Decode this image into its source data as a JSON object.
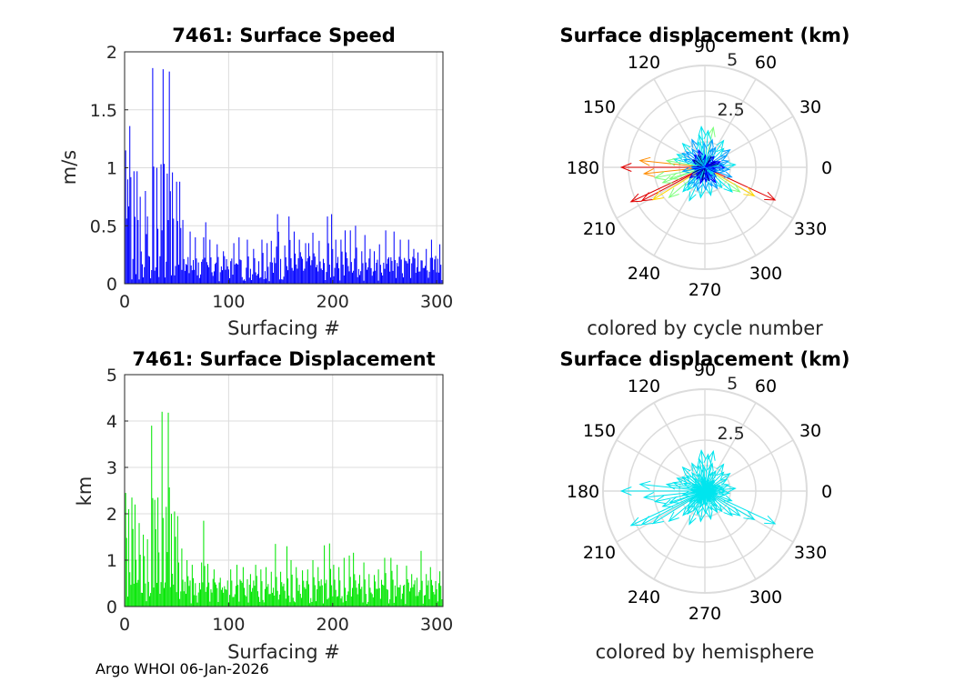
{
  "footer": "Argo WHOI 06-Jan-2026",
  "colors": {
    "speed_bars": "#0000ff",
    "disp_bars": "#00e600",
    "hemisphere": "#00e5ee",
    "grid": "#dcdcdc",
    "axis": "#262626",
    "cycle_palette": [
      "#000080",
      "#0000ff",
      "#00a0ff",
      "#00e5ee",
      "#7fff7f",
      "#ffd700",
      "#ff8c00",
      "#e00000",
      "#8b0000"
    ]
  },
  "chart_data": [
    {
      "type": "bar",
      "title": "7461: Surface Speed",
      "xlabel": "Surfacing #",
      "ylabel": "m/s",
      "xlim": [
        0,
        306
      ],
      "ylim": [
        0,
        2
      ],
      "xticks": [
        "0",
        "100",
        "200",
        "300"
      ],
      "yticks": [
        "0",
        "0.5",
        "1",
        "1.5",
        "2"
      ],
      "grid": true,
      "n": 306,
      "peaks": [
        [
          1,
          1.15
        ],
        [
          3,
          0.9
        ],
        [
          5,
          1.36
        ],
        [
          9,
          0.97
        ],
        [
          12,
          0.97
        ],
        [
          15,
          0.75
        ],
        [
          20,
          0.8
        ],
        [
          22,
          0.58
        ],
        [
          27,
          1.86
        ],
        [
          31,
          1.0
        ],
        [
          35,
          1.03
        ],
        [
          37,
          1.85
        ],
        [
          41,
          0.95
        ],
        [
          43,
          1.83
        ],
        [
          46,
          0.96
        ],
        [
          50,
          0.88
        ],
        [
          53,
          0.88
        ],
        [
          56,
          0.55
        ],
        [
          63,
          0.45
        ],
        [
          68,
          0.4
        ],
        [
          76,
          0.4
        ],
        [
          78,
          0.53
        ],
        [
          82,
          0.38
        ],
        [
          89,
          0.34
        ],
        [
          95,
          0.28
        ],
        [
          105,
          0.35
        ],
        [
          110,
          0.4
        ],
        [
          118,
          0.38
        ],
        [
          124,
          0.3
        ],
        [
          132,
          0.38
        ],
        [
          137,
          0.35
        ],
        [
          141,
          0.37
        ],
        [
          146,
          0.32
        ],
        [
          147,
          0.6
        ],
        [
          154,
          0.33
        ],
        [
          158,
          0.58
        ],
        [
          163,
          0.45
        ],
        [
          168,
          0.38
        ],
        [
          174,
          0.35
        ],
        [
          177,
          0.35
        ],
        [
          181,
          0.44
        ],
        [
          187,
          0.37
        ],
        [
          195,
          0.58
        ],
        [
          199,
          0.6
        ],
        [
          203,
          0.38
        ],
        [
          208,
          0.38
        ],
        [
          212,
          0.46
        ],
        [
          217,
          0.46
        ],
        [
          222,
          0.5
        ],
        [
          228,
          0.28
        ],
        [
          231,
          0.42
        ],
        [
          236,
          0.3
        ],
        [
          240,
          0.28
        ],
        [
          245,
          0.34
        ],
        [
          251,
          0.46
        ],
        [
          259,
          0.45
        ],
        [
          265,
          0.38
        ],
        [
          270,
          0.2
        ],
        [
          273,
          0.38
        ],
        [
          278,
          0.3
        ],
        [
          282,
          0.27
        ],
        [
          286,
          0.2
        ],
        [
          290,
          0.3
        ],
        [
          295,
          0.38
        ],
        [
          299,
          0.24
        ],
        [
          303,
          0.34
        ]
      ]
    },
    {
      "type": "bar",
      "title": "7461: Surface Displacement",
      "xlabel": "Surfacing #",
      "ylabel": "km",
      "xlim": [
        0,
        306
      ],
      "ylim": [
        0,
        5
      ],
      "xticks": [
        "0",
        "100",
        "200",
        "300"
      ],
      "yticks": [
        "0",
        "1",
        "2",
        "3",
        "4",
        "5"
      ],
      "grid": true,
      "n": 306,
      "peaks": [
        [
          1,
          2.45
        ],
        [
          4,
          2.1
        ],
        [
          7,
          2.35
        ],
        [
          10,
          2.2
        ],
        [
          14,
          1.8
        ],
        [
          18,
          1.55
        ],
        [
          22,
          1.45
        ],
        [
          26,
          3.9
        ],
        [
          29,
          2.3
        ],
        [
          32,
          2.35
        ],
        [
          36,
          4.2
        ],
        [
          40,
          2.15
        ],
        [
          42,
          4.18
        ],
        [
          45,
          2.0
        ],
        [
          48,
          2.05
        ],
        [
          51,
          1.95
        ],
        [
          55,
          1.25
        ],
        [
          60,
          1.0
        ],
        [
          65,
          0.9
        ],
        [
          74,
          0.95
        ],
        [
          76,
          1.85
        ],
        [
          80,
          0.92
        ],
        [
          86,
          0.8
        ],
        [
          92,
          0.62
        ],
        [
          102,
          0.8
        ],
        [
          108,
          0.9
        ],
        [
          114,
          0.85
        ],
        [
          121,
          0.7
        ],
        [
          126,
          0.9
        ],
        [
          131,
          0.8
        ],
        [
          136,
          0.85
        ],
        [
          141,
          0.75
        ],
        [
          145,
          1.35
        ],
        [
          150,
          0.75
        ],
        [
          156,
          1.3
        ],
        [
          160,
          1.0
        ],
        [
          165,
          0.85
        ],
        [
          171,
          0.78
        ],
        [
          176,
          0.8
        ],
        [
          181,
          1.0
        ],
        [
          186,
          0.85
        ],
        [
          192,
          1.32
        ],
        [
          197,
          1.36
        ],
        [
          201,
          0.9
        ],
        [
          206,
          0.85
        ],
        [
          211,
          1.05
        ],
        [
          216,
          1.1
        ],
        [
          220,
          1.16
        ],
        [
          226,
          0.68
        ],
        [
          230,
          0.95
        ],
        [
          235,
          0.7
        ],
        [
          240,
          0.68
        ],
        [
          244,
          0.8
        ],
        [
          250,
          1.05
        ],
        [
          256,
          1.05
        ],
        [
          262,
          0.9
        ],
        [
          268,
          0.45
        ],
        [
          271,
          0.88
        ],
        [
          276,
          0.7
        ],
        [
          281,
          0.62
        ],
        [
          285,
          1.2
        ],
        [
          290,
          0.7
        ],
        [
          294,
          0.85
        ],
        [
          299,
          0.55
        ],
        [
          303,
          0.76
        ]
      ]
    },
    {
      "type": "polar-quiver",
      "title": "Surface displacement (km)",
      "caption": "colored by cycle number",
      "color_mode": "cycle",
      "rmax": 5,
      "rticks": [
        "2.5",
        "5"
      ],
      "angle_labels": [
        "0",
        "30",
        "60",
        "90",
        "120",
        "150",
        "180",
        "210",
        "240",
        "270",
        "300",
        "330"
      ],
      "vectors": [
        [
          180,
          4.1
        ],
        [
          174,
          3.2
        ],
        [
          186,
          3.0
        ],
        [
          192,
          2.5
        ],
        [
          205,
          4.0
        ],
        [
          208,
          3.5
        ],
        [
          212,
          3.0
        ],
        [
          200,
          2.2
        ],
        [
          198,
          1.8
        ],
        [
          220,
          2.3
        ],
        [
          228,
          1.6
        ],
        [
          233,
          1.4
        ],
        [
          225,
          1.2
        ],
        [
          335,
          3.8
        ],
        [
          330,
          2.8
        ],
        [
          325,
          2.1
        ],
        [
          318,
          1.8
        ],
        [
          310,
          1.3
        ],
        [
          300,
          1.2
        ],
        [
          290,
          1.0
        ],
        [
          282,
          1.4
        ],
        [
          272,
          1.1
        ],
        [
          262,
          1.5
        ],
        [
          252,
          1.2
        ],
        [
          245,
          1.8
        ],
        [
          240,
          1.1
        ],
        [
          78,
          2.0
        ],
        [
          75,
          1.4
        ],
        [
          85,
          1.8
        ],
        [
          92,
          1.2
        ],
        [
          95,
          2.0
        ],
        [
          100,
          1.6
        ],
        [
          105,
          1.3
        ],
        [
          115,
          1.5
        ],
        [
          125,
          1.1
        ],
        [
          133,
          1.6
        ],
        [
          140,
          1.2
        ],
        [
          148,
          1.3
        ],
        [
          155,
          1.5
        ],
        [
          160,
          1.1
        ],
        [
          165,
          1.6
        ],
        [
          170,
          1.9
        ],
        [
          35,
          1.5
        ],
        [
          28,
          1.2
        ],
        [
          45,
          1.3
        ],
        [
          55,
          1.6
        ],
        [
          62,
          1.1
        ],
        [
          68,
          1.0
        ],
        [
          15,
          1.2
        ],
        [
          10,
          0.9
        ],
        [
          5,
          1.5
        ],
        [
          0,
          1.0
        ],
        [
          355,
          1.2
        ],
        [
          348,
          1.0
        ],
        [
          340,
          1.4
        ],
        [
          20,
          0.8
        ],
        [
          50,
          0.7
        ],
        [
          110,
          0.9
        ],
        [
          130,
          0.8
        ],
        [
          190,
          1.1
        ],
        [
          215,
          0.9
        ],
        [
          255,
          0.8
        ],
        [
          275,
          0.7
        ],
        [
          305,
          0.9
        ],
        [
          345,
          0.6
        ],
        [
          25,
          0.6
        ],
        [
          70,
          0.5
        ],
        [
          88,
          0.6
        ],
        [
          150,
          0.7
        ],
        [
          185,
          0.6
        ],
        [
          235,
          0.7
        ],
        [
          295,
          0.5
        ],
        [
          320,
          0.7
        ],
        [
          350,
          0.5
        ]
      ]
    },
    {
      "type": "polar-quiver",
      "title": "Surface displacement (km)",
      "caption": "colored by hemisphere",
      "color_mode": "hemisphere",
      "rmax": 5,
      "rticks": [
        "2.5",
        "5"
      ],
      "angle_labels": [
        "0",
        "30",
        "60",
        "90",
        "120",
        "150",
        "180",
        "210",
        "240",
        "270",
        "300",
        "330"
      ],
      "vectors": [
        [
          180,
          4.1
        ],
        [
          174,
          3.2
        ],
        [
          186,
          3.0
        ],
        [
          192,
          2.5
        ],
        [
          205,
          4.0
        ],
        [
          208,
          3.5
        ],
        [
          212,
          3.0
        ],
        [
          200,
          2.2
        ],
        [
          198,
          1.8
        ],
        [
          220,
          2.3
        ],
        [
          228,
          1.6
        ],
        [
          233,
          1.4
        ],
        [
          225,
          1.2
        ],
        [
          335,
          3.8
        ],
        [
          330,
          2.8
        ],
        [
          325,
          2.1
        ],
        [
          318,
          1.8
        ],
        [
          310,
          1.3
        ],
        [
          300,
          1.2
        ],
        [
          290,
          1.0
        ],
        [
          282,
          1.4
        ],
        [
          272,
          1.1
        ],
        [
          262,
          1.5
        ],
        [
          252,
          1.2
        ],
        [
          245,
          1.8
        ],
        [
          240,
          1.1
        ],
        [
          78,
          2.0
        ],
        [
          75,
          1.4
        ],
        [
          85,
          1.8
        ],
        [
          92,
          1.2
        ],
        [
          95,
          2.0
        ],
        [
          100,
          1.6
        ],
        [
          105,
          1.3
        ],
        [
          115,
          1.5
        ],
        [
          125,
          1.1
        ],
        [
          133,
          1.6
        ],
        [
          140,
          1.2
        ],
        [
          148,
          1.3
        ],
        [
          155,
          1.5
        ],
        [
          160,
          1.1
        ],
        [
          165,
          1.6
        ],
        [
          170,
          1.9
        ],
        [
          35,
          1.5
        ],
        [
          28,
          1.2
        ],
        [
          45,
          1.3
        ],
        [
          55,
          1.6
        ],
        [
          62,
          1.1
        ],
        [
          68,
          1.0
        ],
        [
          15,
          1.2
        ],
        [
          10,
          0.9
        ],
        [
          5,
          1.5
        ],
        [
          0,
          1.0
        ],
        [
          355,
          1.2
        ],
        [
          348,
          1.0
        ],
        [
          340,
          1.4
        ],
        [
          20,
          0.8
        ],
        [
          50,
          0.7
        ],
        [
          110,
          0.9
        ],
        [
          130,
          0.8
        ],
        [
          190,
          1.1
        ],
        [
          215,
          0.9
        ],
        [
          255,
          0.8
        ],
        [
          275,
          0.7
        ],
        [
          305,
          0.9
        ],
        [
          345,
          0.6
        ],
        [
          25,
          0.6
        ],
        [
          70,
          0.5
        ],
        [
          88,
          0.6
        ],
        [
          150,
          0.7
        ],
        [
          185,
          0.6
        ],
        [
          235,
          0.7
        ],
        [
          295,
          0.5
        ],
        [
          320,
          0.7
        ],
        [
          350,
          0.5
        ]
      ]
    }
  ]
}
